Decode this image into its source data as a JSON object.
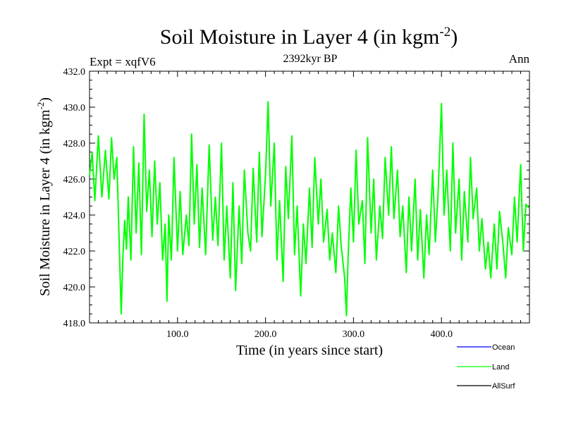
{
  "chart_data": {
    "type": "line",
    "title": "Soil Moisture in Layer 4 (in kgm",
    "title_sup": "-2",
    "title_close": ")",
    "subtitle": "2392kyr BP",
    "left_label": "Expt = xqfV6",
    "right_label": "Ann",
    "xlabel": "Time (in years since start)",
    "ylabel": "Soil Moisture in Layer 4 (in kgm",
    "ylabel_sup": "-2",
    "ylabel_close": ")",
    "xlim": [
      0,
      500
    ],
    "ylim": [
      418,
      432
    ],
    "x_ticks": [
      100,
      200,
      300,
      400
    ],
    "x_tick_labels": [
      "100.0",
      "200.0",
      "300.0",
      "400.0"
    ],
    "y_ticks": [
      418,
      420,
      422,
      424,
      426,
      428,
      430,
      432
    ],
    "y_tick_labels": [
      "418.0",
      "420.0",
      "422.0",
      "424.0",
      "426.0",
      "428.0",
      "430.0",
      "432.0"
    ],
    "grid": false,
    "legend_position": "bottom-right",
    "series": [
      {
        "name": "Ocean",
        "color": "#0000ff",
        "x": [],
        "values": []
      },
      {
        "name": "Land",
        "color": "#00ff00",
        "x": [
          0,
          3,
          6,
          10,
          14,
          18,
          22,
          25,
          28,
          31,
          34,
          36,
          38,
          40,
          42,
          44,
          47,
          50,
          53,
          56,
          59,
          62,
          65,
          68,
          71,
          74,
          77,
          80,
          83,
          86,
          88,
          90,
          93,
          96,
          100,
          103,
          106,
          110,
          113,
          116,
          119,
          122,
          125,
          128,
          132,
          136,
          140,
          143,
          146,
          150,
          153,
          156,
          160,
          163,
          166,
          170,
          173,
          176,
          180,
          183,
          186,
          190,
          193,
          196,
          200,
          203,
          206,
          210,
          213,
          216,
          220,
          223,
          226,
          230,
          233,
          236,
          240,
          243,
          246,
          250,
          253,
          256,
          260,
          263,
          266,
          270,
          273,
          276,
          280,
          283,
          286,
          290,
          292,
          294,
          297,
          300,
          303,
          306,
          310,
          313,
          316,
          320,
          323,
          326,
          330,
          333,
          336,
          340,
          343,
          346,
          350,
          353,
          356,
          360,
          363,
          366,
          370,
          373,
          376,
          380,
          383,
          386,
          390,
          393,
          396,
          400,
          403,
          406,
          410,
          413,
          416,
          420,
          423,
          426,
          430,
          433,
          436,
          440,
          443,
          446,
          450,
          453,
          456,
          460,
          463,
          466,
          470,
          473,
          476,
          480,
          483,
          486,
          490,
          493,
          496,
          499
        ],
        "values": [
          426.2,
          427.5,
          424.8,
          428.4,
          425.0,
          427.6,
          424.9,
          428.3,
          426.0,
          427.2,
          422.0,
          418.5,
          421.8,
          423.7,
          422.1,
          425.0,
          421.5,
          427.8,
          423.0,
          426.9,
          421.8,
          429.6,
          424.2,
          426.5,
          422.8,
          427.0,
          423.5,
          425.8,
          421.5,
          423.5,
          419.2,
          424.0,
          421.5,
          427.2,
          422.0,
          425.3,
          421.8,
          424.0,
          422.3,
          428.5,
          423.5,
          426.8,
          422.2,
          425.5,
          421.8,
          427.9,
          422.6,
          425.0,
          422.3,
          428.0,
          421.5,
          424.5,
          420.5,
          425.8,
          419.8,
          424.5,
          421.3,
          426.5,
          423.0,
          422.0,
          426.6,
          422.5,
          427.5,
          422.8,
          426.2,
          430.3,
          424.5,
          428.0,
          421.5,
          424.8,
          420.3,
          426.7,
          423.8,
          428.4,
          421.8,
          424.5,
          419.5,
          423.5,
          421.3,
          425.5,
          422.2,
          427.2,
          423.5,
          426.0,
          422.5,
          424.3,
          421.5,
          423.0,
          420.8,
          424.5,
          422.3,
          420.5,
          418.4,
          421.8,
          425.5,
          422.5,
          427.6,
          423.5,
          424.8,
          421.3,
          428.3,
          423.0,
          426.0,
          421.5,
          424.5,
          422.7,
          427.2,
          424.0,
          427.8,
          423.8,
          426.5,
          422.8,
          424.5,
          420.8,
          425.0,
          422.0,
          426.0,
          421.5,
          424.3,
          420.5,
          424.0,
          421.8,
          426.5,
          422.5,
          425.0,
          430.2,
          424.0,
          426.5,
          422.0,
          428.0,
          423.0,
          426.0,
          421.5,
          425.3,
          422.5,
          427.2,
          423.8,
          425.5,
          422.0,
          423.8,
          421.0,
          422.5,
          420.5,
          423.5,
          421.0,
          424.2,
          422.3,
          420.5,
          423.3,
          421.8,
          425.0,
          422.5,
          426.8,
          422.0,
          424.6,
          424.4
        ]
      },
      {
        "name": "AllSurf",
        "color": "#000000",
        "x": [],
        "values": []
      }
    ]
  }
}
